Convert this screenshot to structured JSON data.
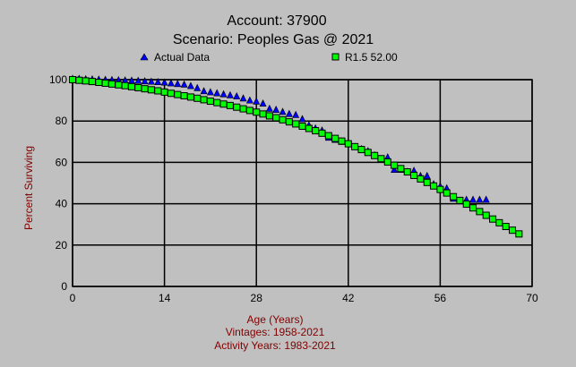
{
  "chart_data": {
    "type": "scatter",
    "title": "Account: 37900",
    "subtitle": "Scenario: Peoples Gas @ 2021",
    "xlabel": "Age (Years)",
    "ylabel": "Percent Surviving",
    "footer": [
      "Vintages: 1958-2021",
      "Activity Years: 1983-2021"
    ],
    "xlim": [
      0,
      70
    ],
    "ylim": [
      0,
      100
    ],
    "xticks": [
      0,
      14,
      28,
      42,
      56,
      70
    ],
    "yticks": [
      0,
      20,
      40,
      60,
      80,
      100
    ],
    "grid": true,
    "legend_placement": "top",
    "series": [
      {
        "name": "Actual Data",
        "marker": "triangle",
        "color": "#0000ff",
        "x": [
          0,
          1,
          2,
          3,
          4,
          5,
          6,
          7,
          8,
          9,
          10,
          11,
          12,
          13,
          14,
          15,
          16,
          17,
          18,
          19,
          20,
          21,
          22,
          23,
          24,
          25,
          26,
          27,
          28,
          29,
          30,
          31,
          32,
          33,
          34,
          35,
          36,
          37,
          38,
          39,
          40,
          41,
          42,
          43,
          44,
          45,
          46,
          47,
          48,
          49,
          50,
          51,
          52,
          53,
          54,
          55,
          56,
          57,
          58,
          59,
          60,
          61,
          62,
          63
        ],
        "y": [
          100,
          100,
          99.8,
          99.7,
          99.6,
          99.5,
          99.4,
          99.3,
          99.2,
          99.1,
          99,
          98.8,
          98.6,
          98.4,
          98.2,
          97.8,
          97.5,
          97.2,
          96.5,
          95.5,
          94,
          93.5,
          93,
          92.5,
          92,
          91.5,
          90.5,
          89.5,
          89,
          88,
          85.5,
          85,
          84,
          83,
          82.5,
          80.5,
          77.5,
          76,
          75,
          71.5,
          70.5,
          69.5,
          68.5,
          67,
          66,
          65,
          63,
          61,
          62,
          56,
          56,
          55,
          55.5,
          53,
          53,
          49,
          48,
          47,
          42,
          41,
          41.5,
          41.5,
          41.5,
          41.5
        ]
      },
      {
        "name": "R1.5 52.00",
        "marker": "square",
        "color": "#00ff00",
        "x": [
          0,
          1,
          2,
          3,
          4,
          5,
          6,
          7,
          8,
          9,
          10,
          11,
          12,
          13,
          14,
          15,
          16,
          17,
          18,
          19,
          20,
          21,
          22,
          23,
          24,
          25,
          26,
          27,
          28,
          29,
          30,
          31,
          32,
          33,
          34,
          35,
          36,
          37,
          38,
          39,
          40,
          41,
          42,
          43,
          44,
          45,
          46,
          47,
          48,
          49,
          50,
          51,
          52,
          53,
          54,
          55,
          56,
          57,
          58,
          59,
          60,
          61,
          62,
          63,
          64,
          65,
          66,
          67,
          68
        ],
        "y": [
          100,
          99.7,
          99.4,
          99.1,
          98.7,
          98.3,
          97.9,
          97.5,
          97.1,
          96.6,
          96.1,
          95.6,
          95.1,
          94.6,
          94,
          93.4,
          92.8,
          92.2,
          91.6,
          91,
          90.3,
          89.6,
          88.9,
          88.2,
          87.5,
          86.7,
          85.9,
          85.1,
          84.3,
          83.4,
          82.5,
          81.6,
          80.6,
          79.6,
          78.6,
          77.5,
          76.4,
          75.3,
          74.1,
          72.9,
          71.6,
          70.3,
          69,
          67.6,
          66.2,
          64.8,
          63.3,
          61.8,
          60.2,
          58.6,
          57,
          55.4,
          53.7,
          52,
          50.3,
          48.6,
          46.9,
          45.2,
          43.4,
          41.6,
          39.8,
          38,
          36.2,
          34.4,
          32.6,
          30.8,
          29,
          27.2,
          25.4
        ]
      }
    ]
  }
}
